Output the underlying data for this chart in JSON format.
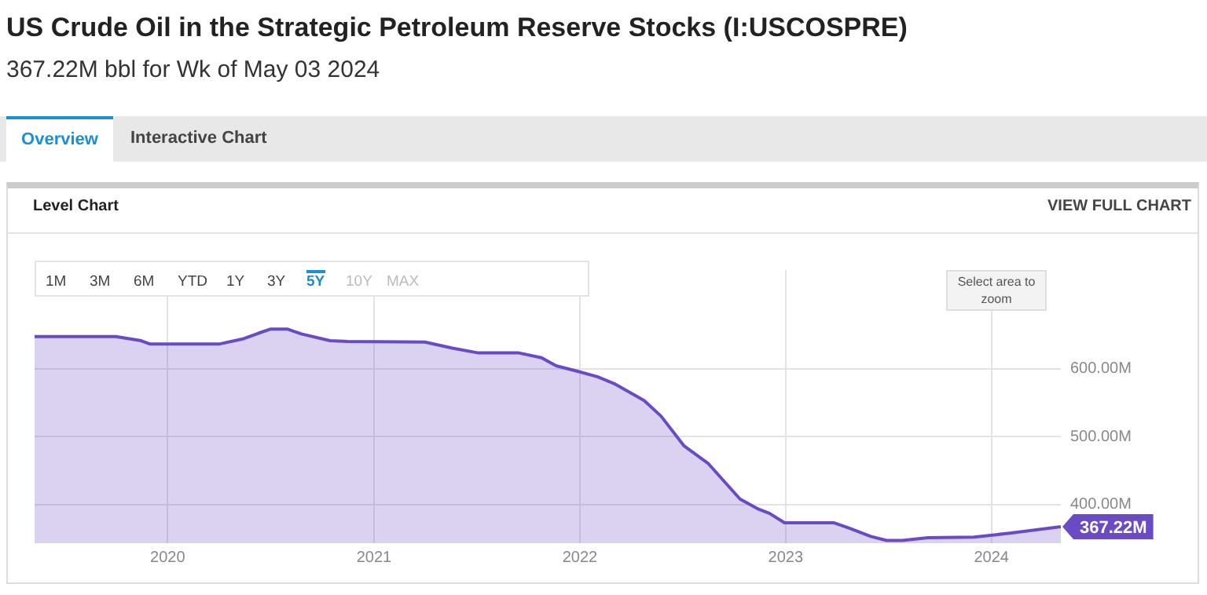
{
  "chart_data": {
    "type": "area",
    "title": "US Crude Oil in the Strategic Petroleum Reserve Stocks (I:USCOSPRE)",
    "subtitle": "367.22M bbl for Wk of May 03 2024",
    "annotations": [
      "Overview",
      "Interactive Chart",
      "Level Chart",
      "VIEW FULL CHART",
      "1M",
      "3M",
      "6M",
      "YTD",
      "1Y",
      "3Y",
      "5Y",
      "10Y",
      "MAX",
      "Select area to zoom"
    ],
    "x": [
      "2019-05-10",
      "2019-10-01",
      "2019-11-15",
      "2019-12-01",
      "2020-04-01",
      "2020-05-15",
      "2020-06-10",
      "2020-07-01",
      "2020-08-01",
      "2020-08-25",
      "2020-10-15",
      "2020-11-15",
      "2021-04-01",
      "2021-05-20",
      "2021-07-05",
      "2021-09-15",
      "2021-10-25",
      "2021-11-20",
      "2021-12-28",
      "2022-02-01",
      "2022-03-05",
      "2022-04-25",
      "2022-05-25",
      "2022-07-05",
      "2022-08-17",
      "2022-09-14",
      "2022-10-12",
      "2022-11-14",
      "2022-12-03",
      "2022-12-30",
      "2023-03-28",
      "2023-04-24",
      "2023-06-01",
      "2023-06-29",
      "2023-07-27",
      "2023-09-10",
      "2023-12-01",
      "2024-02-05",
      "2024-05-03"
    ],
    "series": [
      {
        "color": "#6a4bc4",
        "values": [
          647,
          647,
          641,
          636,
          636,
          644,
          652,
          658,
          658,
          651,
          641,
          640,
          639,
          630,
          623,
          623,
          616,
          604,
          596,
          588,
          577,
          553,
          530,
          486,
          460,
          434,
          408,
          393,
          387,
          373,
          373,
          365,
          353,
          347,
          347,
          351,
          352,
          358,
          367.22
        ],
        "value_labels": [
          null,
          null,
          null,
          null,
          null,
          null,
          null,
          null,
          null,
          null,
          null,
          null,
          null,
          null,
          null,
          null,
          null,
          null,
          null,
          null,
          null,
          null,
          null,
          null,
          null,
          null,
          null,
          null,
          null,
          null,
          null,
          null,
          null,
          null,
          null,
          null,
          null,
          null,
          "367.22M"
        ]
      }
    ],
    "xlim": [
      "2019-05-10",
      "2024-05-03"
    ],
    "xticks": [
      "2020",
      "2021",
      "2022",
      "2023",
      "2024"
    ],
    "ylim": [
      343,
      745
    ],
    "yticks": [
      {
        "value": 400,
        "label": "400.00M"
      },
      {
        "value": 500,
        "label": "500.00M"
      },
      {
        "value": 600,
        "label": "600.00M"
      }
    ],
    "grid": true,
    "legend": false
  }
}
